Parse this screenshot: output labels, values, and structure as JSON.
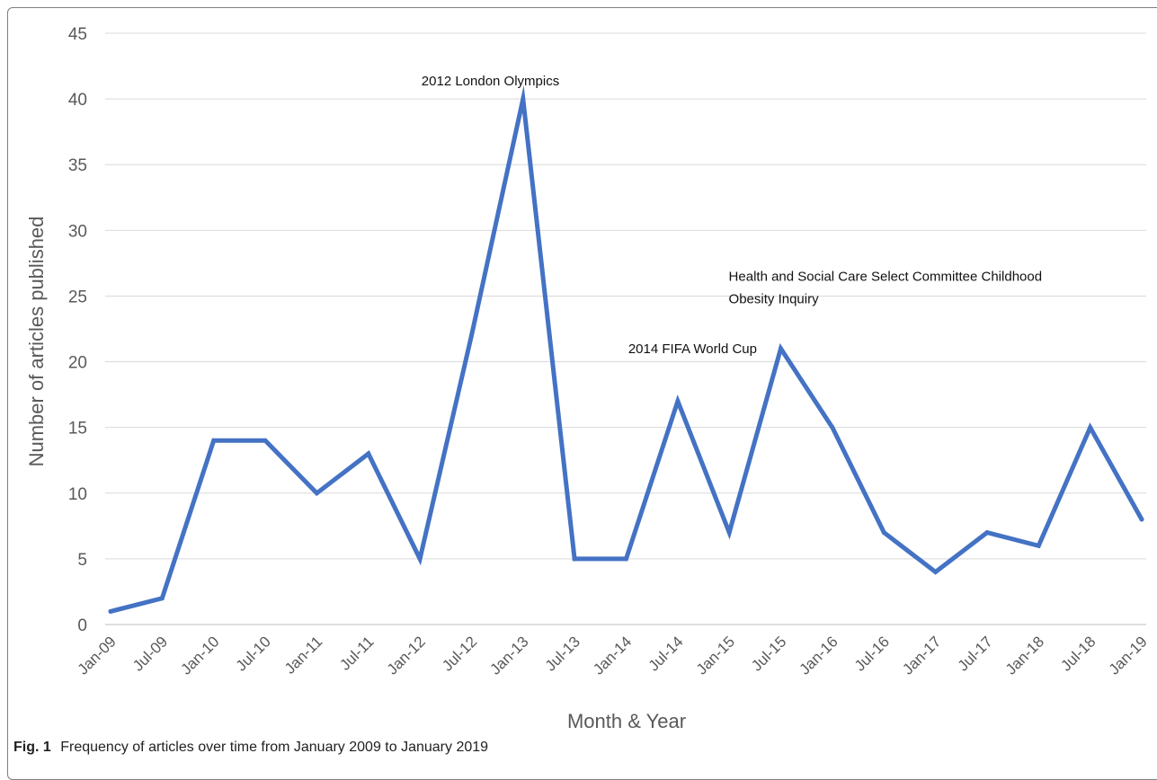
{
  "chart_data": {
    "type": "line",
    "title": "",
    "xlabel": "Month & Year",
    "ylabel": "Number of articles published",
    "ylim": [
      0,
      45
    ],
    "yticks": [
      0,
      5,
      10,
      15,
      20,
      25,
      30,
      35,
      40,
      45
    ],
    "grid": "horizontal",
    "legend": "none",
    "line_color": "#4472C4",
    "categories": [
      "Jan-09",
      "Jul-09",
      "Jan-10",
      "Jul-10",
      "Jan-11",
      "Jul-11",
      "Jan-12",
      "Jul-12",
      "Jan-13",
      "Jul-13",
      "Jan-14",
      "Jul-14",
      "Jan-15",
      "Jul-15",
      "Jan-16",
      "Jul-16",
      "Jan-17",
      "Jul-17",
      "Jan-18",
      "Jul-18",
      "Jan-19"
    ],
    "series": [
      {
        "values": [
          1,
          2,
          14,
          14,
          10,
          13,
          5,
          22,
          40,
          5,
          5,
          17,
          7,
          21,
          15,
          7,
          4,
          7,
          6,
          15,
          8
        ]
      }
    ],
    "annotations": [
      {
        "text": "2012 London Olympics",
        "category": "Jan-13",
        "value": 40
      },
      {
        "text": "2014 FIFA World Cup",
        "category": "Jul-14",
        "value": 21
      },
      {
        "text": "Health and Social Care Select Committee Childhood",
        "category": "Jul-15",
        "value": 26.5
      },
      {
        "text": "Obesity Inquiry",
        "category": "Jul-15",
        "value": 24.8
      }
    ]
  },
  "caption": {
    "label": "Fig. 1",
    "text": "Frequency of articles over time from January 2009 to January 2019"
  }
}
